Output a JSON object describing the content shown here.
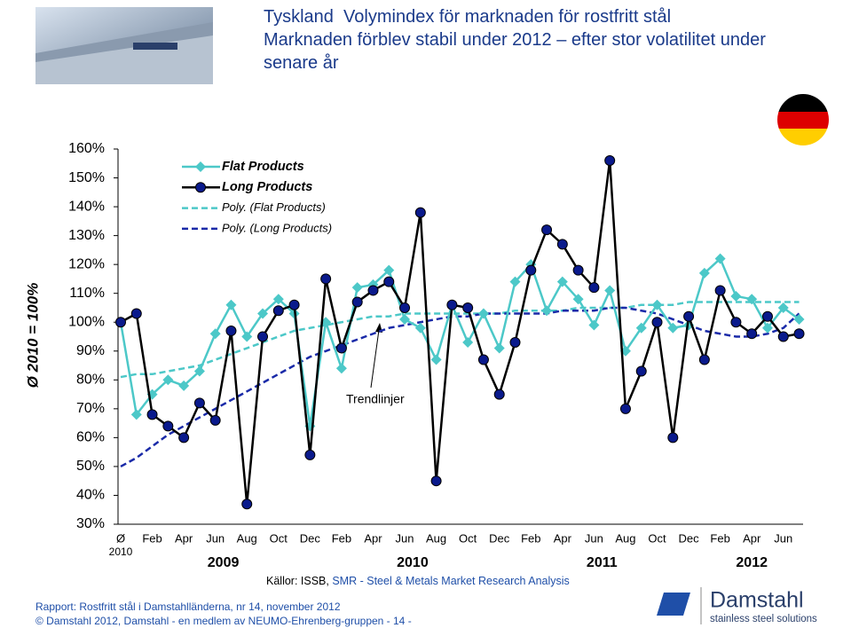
{
  "header": {
    "title": "Tyskland  Volymindex för marknaden för rostfritt stål",
    "subtitle": "Marknaden förblev stabil under 2012 – efter stor volatilitet under senare år"
  },
  "chart_data": {
    "type": "line",
    "y_axis_label": "Ø 2010 = 100%",
    "categories": [
      "Ø",
      null,
      "Feb",
      null,
      "Apr",
      null,
      "Jun",
      null,
      "Aug",
      null,
      "Oct",
      null,
      "Dec",
      null,
      "Feb",
      null,
      "Apr",
      null,
      "Jun",
      null,
      "Aug",
      null,
      "Oct",
      null,
      "Dec",
      null,
      "Feb",
      null,
      "Apr",
      null,
      "Jun",
      null,
      "Aug",
      null,
      "Oct",
      null,
      "Dec",
      null,
      "Feb",
      null,
      "Apr",
      null,
      "Jun",
      null
    ],
    "first_category_sublabel": "2010",
    "year_labels": [
      "2009",
      "2010",
      "2011",
      "2012"
    ],
    "ylim": [
      30,
      160
    ],
    "yticks": [
      {
        "value": 30,
        "label": "30%"
      },
      {
        "value": 40,
        "label": "40%"
      },
      {
        "value": 50,
        "label": "50%"
      },
      {
        "value": 60,
        "label": "60%"
      },
      {
        "value": 70,
        "label": "70%"
      },
      {
        "value": 80,
        "label": "80%"
      },
      {
        "value": 90,
        "label": "90%"
      },
      {
        "value": 100,
        "label": "100%"
      },
      {
        "value": 110,
        "label": "110%"
      },
      {
        "value": 120,
        "label": "120%"
      },
      {
        "value": 130,
        "label": "130%"
      },
      {
        "value": 140,
        "label": "140%"
      },
      {
        "value": 150,
        "label": "150%"
      },
      {
        "value": 160,
        "label": "160%"
      }
    ],
    "grid": false,
    "legend": "top-left",
    "series": [
      {
        "name": "Flat Products",
        "color": "#4cc8c8",
        "marker": "diamond",
        "marker_color": "#4cc8c8",
        "dashed": false,
        "values": [
          100,
          68,
          75,
          80,
          78,
          83,
          96,
          106,
          95,
          103,
          108,
          103,
          64,
          100,
          84,
          112,
          113,
          118,
          101,
          98,
          87,
          106,
          93,
          103,
          91,
          114,
          120,
          104,
          114,
          108,
          99,
          111,
          90,
          98,
          106,
          98,
          99,
          117,
          122,
          109,
          108,
          98,
          105,
          101
        ]
      },
      {
        "name": "Long Products",
        "color": "#000000",
        "marker": "circle",
        "marker_color": "#0a1a8c",
        "dashed": false,
        "values": [
          100,
          103,
          68,
          64,
          60,
          72,
          66,
          97,
          37,
          95,
          104,
          106,
          54,
          115,
          91,
          107,
          111,
          114,
          105,
          138,
          45,
          106,
          105,
          87,
          75,
          93,
          118,
          132,
          127,
          118,
          112,
          156,
          70,
          83,
          100,
          60,
          102,
          87,
          111,
          100,
          96,
          102,
          95,
          96
        ]
      },
      {
        "name": "Poly. (Flat Products)",
        "color": "#4cc8c8",
        "marker": "none",
        "dashed": true,
        "values": [
          81,
          82,
          82,
          83,
          84,
          85,
          87,
          89,
          91,
          93,
          95,
          97,
          98,
          99,
          100,
          101,
          102,
          102,
          103,
          103,
          103,
          103,
          103,
          103,
          103,
          104,
          104,
          104,
          104,
          105,
          105,
          105,
          105,
          106,
          106,
          106,
          107,
          107,
          107,
          107,
          107,
          107,
          107,
          107
        ]
      },
      {
        "name": "Poly. (Long Products)",
        "color": "#1a2aa8",
        "marker": "none",
        "dashed": true,
        "values": [
          50,
          53,
          57,
          61,
          64,
          67,
          70,
          73,
          76,
          79,
          82,
          85,
          88,
          90,
          92,
          94,
          96,
          98,
          99,
          100,
          101,
          102,
          102,
          103,
          103,
          103,
          103,
          103,
          104,
          104,
          104,
          105,
          105,
          104,
          103,
          101,
          99,
          97,
          96,
          95,
          95,
          96,
          98,
          103
        ]
      }
    ],
    "annotation": "Trendlinjer"
  },
  "source": {
    "prefix": "Källor: ISSB, ",
    "name": "SMR - Steel & Metals Market Research Analysis"
  },
  "footer": {
    "report": "Rapport: Rostfritt stål i Damstahlländerna, nr 14, november 2012",
    "copyright": "© Damstahl 2012, Damstahl - en medlem av NEUMO-Ehrenberg-gruppen - 14 -"
  },
  "logo": {
    "name": "Damstahl",
    "tagline": "stainless steel solutions"
  }
}
